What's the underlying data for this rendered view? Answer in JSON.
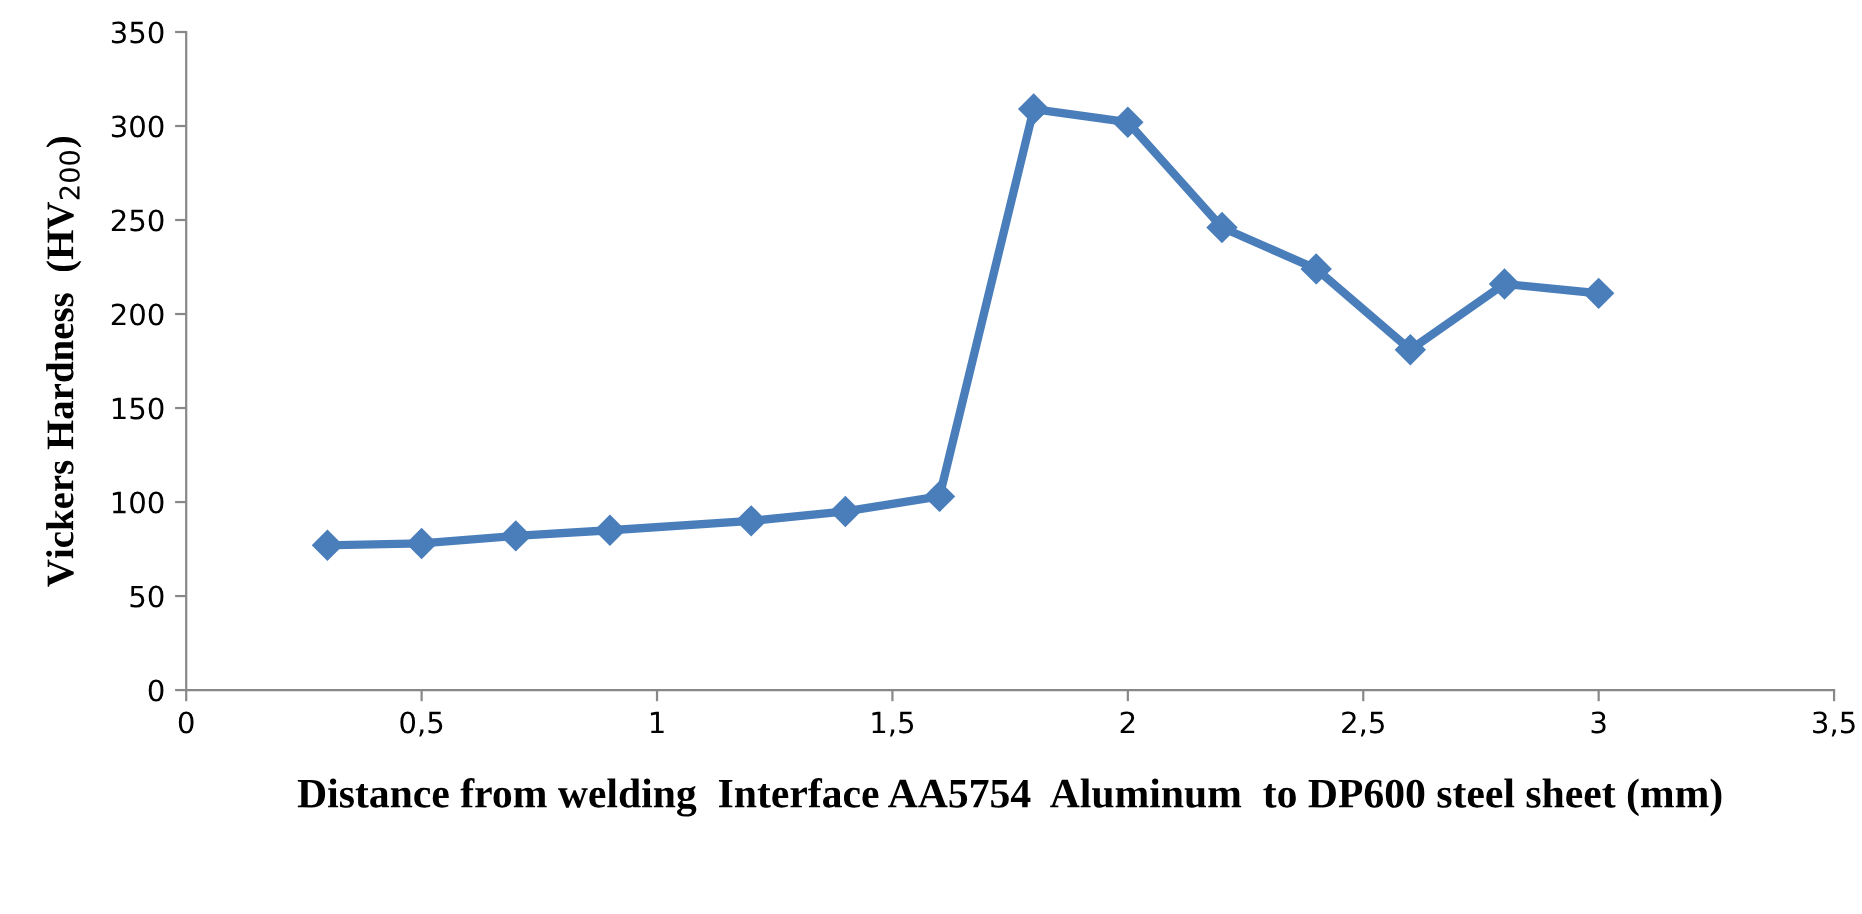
{
  "chart_data": {
    "type": "line",
    "xlabel": "Distance from welding  Interface AA5754  Aluminum  to DP600 steel sheet (mm)",
    "ylabel": "Vickers Hardness  (HV$_{200}$)",
    "x": [
      0.3,
      0.5,
      0.7,
      0.9,
      1.2,
      1.4,
      1.6,
      1.8,
      2.0,
      2.2,
      2.4,
      2.6,
      2.8,
      3.0
    ],
    "series": [
      {
        "color": "#4a7ebb",
        "values": [
          77,
          78,
          82,
          85,
          90,
          95,
          103,
          309,
          302,
          246,
          224,
          181,
          216,
          211
        ]
      }
    ],
    "xlim": [
      0,
      3.5
    ],
    "xticks": [
      0,
      {
        "value": 0.5,
        "label": "0,5"
      },
      1,
      {
        "value": 1.5,
        "label": "1,5"
      },
      2,
      {
        "value": 2.5,
        "label": "2,5"
      },
      3,
      {
        "value": 3.5,
        "label": "3,5"
      }
    ],
    "ylim": [
      0,
      350
    ],
    "yticks": [
      0,
      50,
      100,
      150,
      200,
      250,
      300,
      350
    ],
    "grid": false,
    "legend": false,
    "marker": "diamond",
    "line_style": "solid"
  }
}
